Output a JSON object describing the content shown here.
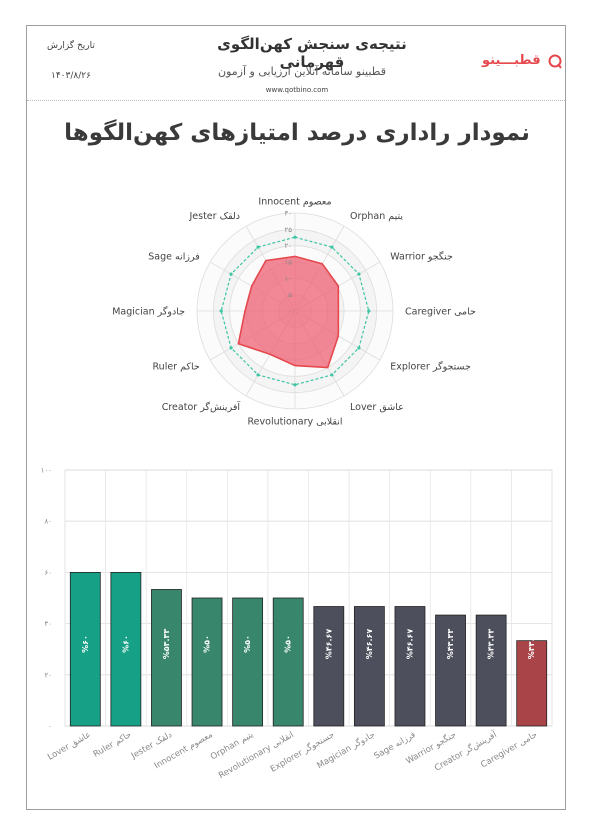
{
  "header": {
    "title": "نتیجه‌ی سنجش کهن‌الگوی قهرمانی",
    "subtitle": "قطبینو سامانه آنلاین ارزیابی و آزمون",
    "url": "www.qotbino.com",
    "date_label": "تاریخ گزارش",
    "date": "۱۴۰۳/۸/۲۶",
    "logo_text": "قطبـــینو",
    "colors": {
      "brand": "#e5484d"
    }
  },
  "chart_title": "نمودار راداری درصد امتیازهای کهن‌الگوها",
  "chart_data": [
    {
      "type": "radar",
      "axes": [
        "Innocent معصوم",
        "Orphan یتیم",
        "Warrior جنگجو",
        "Caregiver حامی",
        "Explorer جستجوگر",
        "Lover عاشق",
        "Revolutionary انقلابی",
        "Creator آفرینش‌گر",
        "Ruler حاکم",
        "Magician جادوگر",
        "Sage فرزانه",
        "Jester دلقک"
      ],
      "ticks": [
        "۰",
        "۵",
        "۱۰",
        "۱۵",
        "۲۰",
        "۲۵",
        "۳۰"
      ],
      "range": [
        0,
        30
      ],
      "series": [
        {
          "values": [
            16.7,
            16.7,
            15.3,
            13.3,
            15.3,
            20,
            16.7,
            15.3,
            20,
            15.3,
            15.3,
            17.8
          ],
          "color": "#e5484d",
          "fill": "rgba(238,90,110,0.72)"
        },
        {
          "values": [
            22.6,
            22.6,
            22.6,
            22.6,
            22.6,
            22.6,
            22.6,
            22.6,
            22.6,
            22.6,
            22.6,
            22.6
          ],
          "color": "#3ec5a4",
          "style": "dashed"
        }
      ]
    },
    {
      "type": "bar",
      "categories": [
        "Lover عاشق",
        "Ruler حاکم",
        "Jester دلقک",
        "Innocent معصوم",
        "Orphan یتیم",
        "Revolutionary انقلابی",
        "Explorer جستجوگر",
        "Magician جادوگر",
        "Sage فرزانه",
        "Warrior جنگجو",
        "Creator آفرینش‌گر",
        "Caregiver حامی"
      ],
      "values": [
        60,
        60,
        53.33,
        50,
        50,
        50,
        46.67,
        46.67,
        46.67,
        43.33,
        43.33,
        33.33
      ],
      "bar_labels": [
        "%۶۰",
        "%۶۰",
        "%۵۳.۳۳",
        "%۵۰",
        "%۵۰",
        "%۵۰",
        "%۴۶.۶۷",
        "%۴۶.۶۷",
        "%۴۶.۶۷",
        "%۴۳.۳۳",
        "%۴۳.۳۳",
        "%۳۳.۳۳"
      ],
      "colors": [
        "#16a085",
        "#16a085",
        "#38876d",
        "#38876d",
        "#38876d",
        "#38876d",
        "#4d4f5c",
        "#4d4f5c",
        "#4d4f5c",
        "#4d4f5c",
        "#4d4f5c",
        "#a94548"
      ],
      "yticks": [
        "۰",
        "۲۰",
        "۴۰",
        "۶۰",
        "۸۰",
        "۱۰۰"
      ],
      "ylim": [
        0,
        100
      ],
      "grid": true
    }
  ]
}
